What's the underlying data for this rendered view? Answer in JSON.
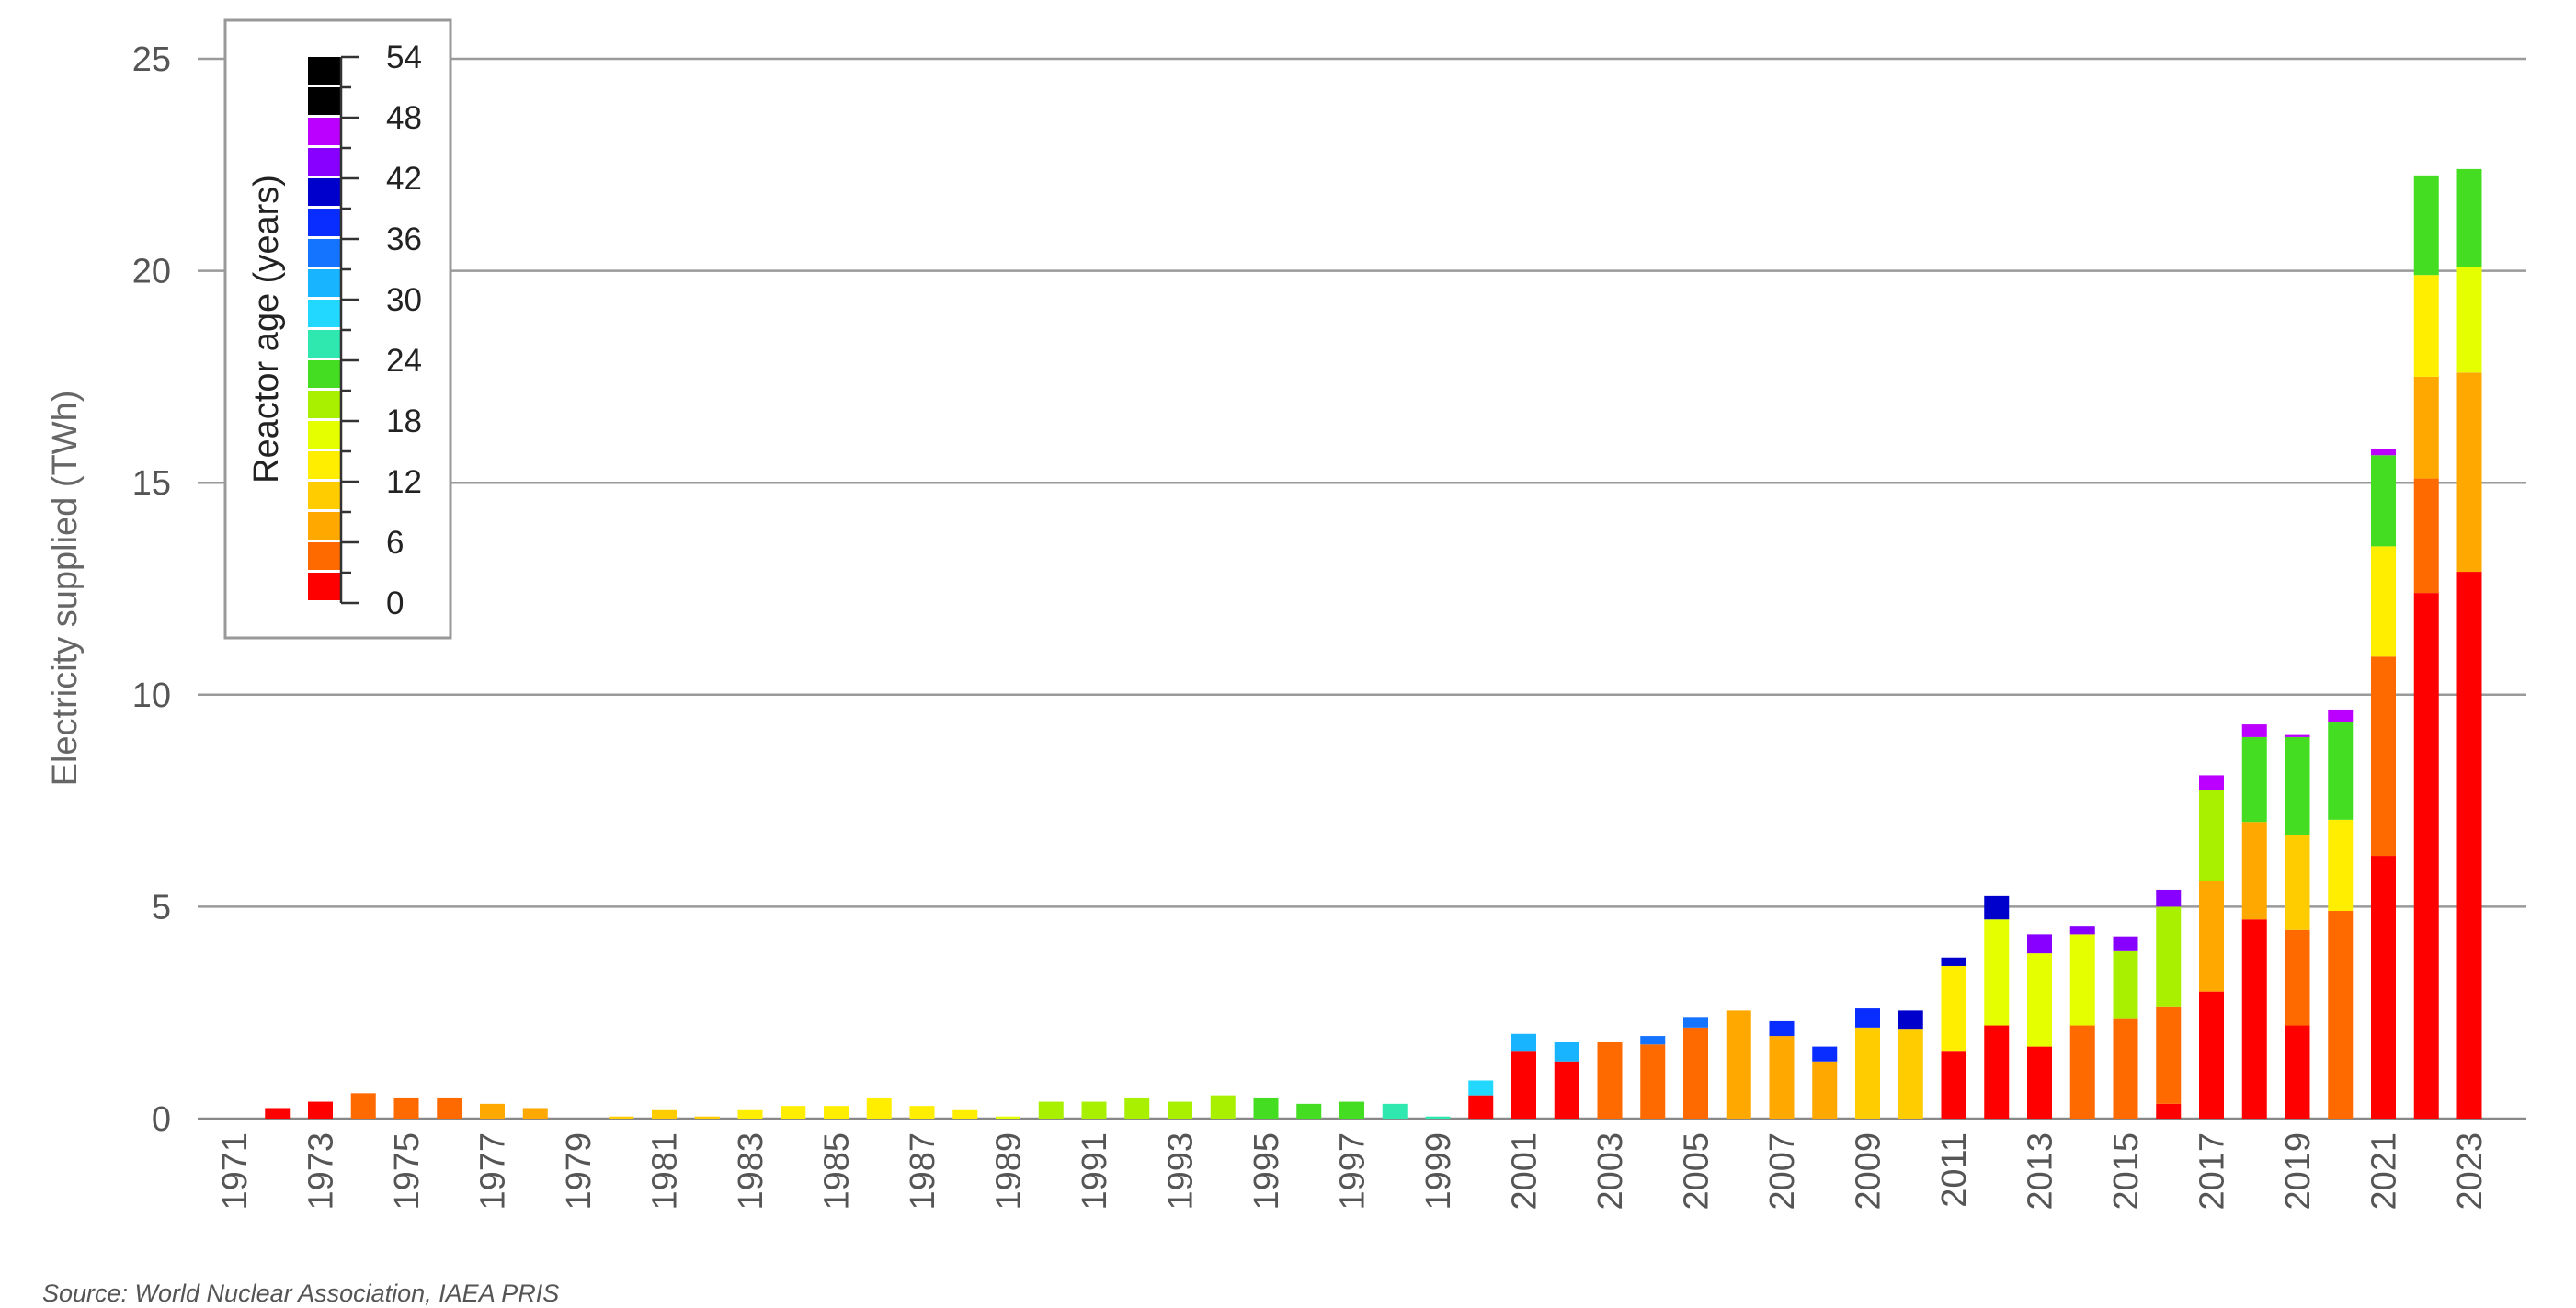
{
  "source": "Source: World Nuclear Association, IAEA PRIS",
  "chart_data": {
    "type": "bar",
    "stacked": true,
    "title": "",
    "xlabel": "",
    "ylabel": "Electricity supplied (TWh)",
    "ylim": [
      0,
      25
    ],
    "yticks": [
      0,
      5,
      10,
      15,
      20,
      25
    ],
    "grid": true,
    "legend": {
      "title": "Reactor age (years)",
      "placement": "top-left",
      "kind": "colorbar",
      "ticks": [
        0,
        6,
        12,
        18,
        24,
        30,
        36,
        42,
        48,
        54
      ],
      "bin_years": 3,
      "colors": [
        "#ff0000",
        "#ff6a00",
        "#ffa800",
        "#ffcc00",
        "#ffee00",
        "#e6ff00",
        "#a8f000",
        "#44dd22",
        "#2ee8b0",
        "#22d8ff",
        "#18b4ff",
        "#1473ff",
        "#0a2dff",
        "#0000cc",
        "#8800ff",
        "#bb00ff"
      ]
    },
    "categories": [
      "1971",
      "1972",
      "1973",
      "1974",
      "1975",
      "1976",
      "1977",
      "1978",
      "1979",
      "1980",
      "1981",
      "1982",
      "1983",
      "1984",
      "1985",
      "1986",
      "1987",
      "1988",
      "1989",
      "1990",
      "1991",
      "1992",
      "1993",
      "1994",
      "1995",
      "1996",
      "1997",
      "1998",
      "1999",
      "2000",
      "2001",
      "2002",
      "2003",
      "2004",
      "2005",
      "2006",
      "2007",
      "2008",
      "2009",
      "2010",
      "2011",
      "2012",
      "2013",
      "2014",
      "2015",
      "2016",
      "2017",
      "2018",
      "2019",
      "2020",
      "2021",
      "2022",
      "2023"
    ],
    "xtick_labels": [
      "1971",
      "1973",
      "1975",
      "1977",
      "1979",
      "1981",
      "1983",
      "1985",
      "1987",
      "1989",
      "1991",
      "1993",
      "1995",
      "1997",
      "1999",
      "2001",
      "2003",
      "2005",
      "2007",
      "2009",
      "2011",
      "2013",
      "2015",
      "2017",
      "2019",
      "2021",
      "2023"
    ],
    "stacks": [
      [],
      [
        {
          "age": 0,
          "value": 0.25
        }
      ],
      [
        {
          "age": 0,
          "value": 0.4
        }
      ],
      [
        {
          "age": 3,
          "value": 0.6
        }
      ],
      [
        {
          "age": 3,
          "value": 0.5
        }
      ],
      [
        {
          "age": 3,
          "value": 0.5
        }
      ],
      [
        {
          "age": 6,
          "value": 0.35
        }
      ],
      [
        {
          "age": 6,
          "value": 0.25
        }
      ],
      [],
      [
        {
          "age": 9,
          "value": 0.05
        }
      ],
      [
        {
          "age": 9,
          "value": 0.2
        }
      ],
      [
        {
          "age": 9,
          "value": 0.05
        }
      ],
      [
        {
          "age": 12,
          "value": 0.2
        }
      ],
      [
        {
          "age": 12,
          "value": 0.3
        }
      ],
      [
        {
          "age": 12,
          "value": 0.3
        }
      ],
      [
        {
          "age": 12,
          "value": 0.5
        }
      ],
      [
        {
          "age": 12,
          "value": 0.3
        }
      ],
      [
        {
          "age": 12,
          "value": 0.2
        }
      ],
      [
        {
          "age": 15,
          "value": 0.05
        }
      ],
      [
        {
          "age": 18,
          "value": 0.4
        }
      ],
      [
        {
          "age": 18,
          "value": 0.4
        }
      ],
      [
        {
          "age": 18,
          "value": 0.5
        }
      ],
      [
        {
          "age": 18,
          "value": 0.4
        }
      ],
      [
        {
          "age": 18,
          "value": 0.55
        }
      ],
      [
        {
          "age": 21,
          "value": 0.5
        }
      ],
      [
        {
          "age": 21,
          "value": 0.35
        }
      ],
      [
        {
          "age": 21,
          "value": 0.4
        }
      ],
      [
        {
          "age": 24,
          "value": 0.35
        }
      ],
      [
        {
          "age": 24,
          "value": 0.05
        }
      ],
      [
        {
          "age": 0,
          "value": 0.55
        },
        {
          "age": 27,
          "value": 0.35
        }
      ],
      [
        {
          "age": 0,
          "value": 1.6
        },
        {
          "age": 30,
          "value": 0.4
        }
      ],
      [
        {
          "age": 0,
          "value": 1.35
        },
        {
          "age": 30,
          "value": 0.45
        }
      ],
      [
        {
          "age": 3,
          "value": 1.8
        }
      ],
      [
        {
          "age": 3,
          "value": 1.75
        },
        {
          "age": 33,
          "value": 0.2
        }
      ],
      [
        {
          "age": 3,
          "value": 2.15
        },
        {
          "age": 33,
          "value": 0.25
        }
      ],
      [
        {
          "age": 6,
          "value": 2.55
        }
      ],
      [
        {
          "age": 6,
          "value": 1.95
        },
        {
          "age": 36,
          "value": 0.35
        }
      ],
      [
        {
          "age": 6,
          "value": 1.35
        },
        {
          "age": 36,
          "value": 0.35
        }
      ],
      [
        {
          "age": 9,
          "value": 2.15
        },
        {
          "age": 36,
          "value": 0.45
        }
      ],
      [
        {
          "age": 9,
          "value": 2.1
        },
        {
          "age": 39,
          "value": 0.45
        }
      ],
      [
        {
          "age": 0,
          "value": 1.6
        },
        {
          "age": 12,
          "value": 2.0
        },
        {
          "age": 39,
          "value": 0.2
        }
      ],
      [
        {
          "age": 0,
          "value": 2.2
        },
        {
          "age": 15,
          "value": 2.5
        },
        {
          "age": 39,
          "value": 0.55
        }
      ],
      [
        {
          "age": 0,
          "value": 1.7
        },
        {
          "age": 15,
          "value": 2.2
        },
        {
          "age": 42,
          "value": 0.45
        }
      ],
      [
        {
          "age": 3,
          "value": 2.2
        },
        {
          "age": 15,
          "value": 2.15
        },
        {
          "age": 42,
          "value": 0.2
        }
      ],
      [
        {
          "age": 3,
          "value": 2.35
        },
        {
          "age": 18,
          "value": 1.6
        },
        {
          "age": 42,
          "value": 0.35
        }
      ],
      [
        {
          "age": 0,
          "value": 0.35
        },
        {
          "age": 3,
          "value": 2.3
        },
        {
          "age": 18,
          "value": 2.35
        },
        {
          "age": 42,
          "value": 0.4
        }
      ],
      [
        {
          "age": 0,
          "value": 3.0
        },
        {
          "age": 6,
          "value": 2.6
        },
        {
          "age": 18,
          "value": 2.15
        },
        {
          "age": 45,
          "value": 0.35
        }
      ],
      [
        {
          "age": 0,
          "value": 4.7
        },
        {
          "age": 6,
          "value": 2.3
        },
        {
          "age": 21,
          "value": 2.0
        },
        {
          "age": 45,
          "value": 0.3
        }
      ],
      [
        {
          "age": 0,
          "value": 2.2
        },
        {
          "age": 3,
          "value": 2.25
        },
        {
          "age": 9,
          "value": 2.25
        },
        {
          "age": 21,
          "value": 2.3
        },
        {
          "age": 48,
          "value": 0.05
        }
      ],
      [
        {
          "age": 3,
          "value": 4.9
        },
        {
          "age": 12,
          "value": 2.15
        },
        {
          "age": 21,
          "value": 2.3
        },
        {
          "age": 51,
          "value": 0.3
        }
      ],
      [
        {
          "age": 0,
          "value": 6.2
        },
        {
          "age": 3,
          "value": 4.7
        },
        {
          "age": 12,
          "value": 2.6
        },
        {
          "age": 21,
          "value": 2.15
        },
        {
          "age": 51,
          "value": 0.15
        }
      ],
      [
        {
          "age": 0,
          "value": 12.4
        },
        {
          "age": 3,
          "value": 2.7
        },
        {
          "age": 6,
          "value": 2.4
        },
        {
          "age": 12,
          "value": 2.4
        },
        {
          "age": 21,
          "value": 2.35
        }
      ],
      [
        {
          "age": 0,
          "value": 12.9
        },
        {
          "age": 6,
          "value": 4.7
        },
        {
          "age": 15,
          "value": 2.5
        },
        {
          "age": 21,
          "value": 2.3
        }
      ]
    ]
  }
}
